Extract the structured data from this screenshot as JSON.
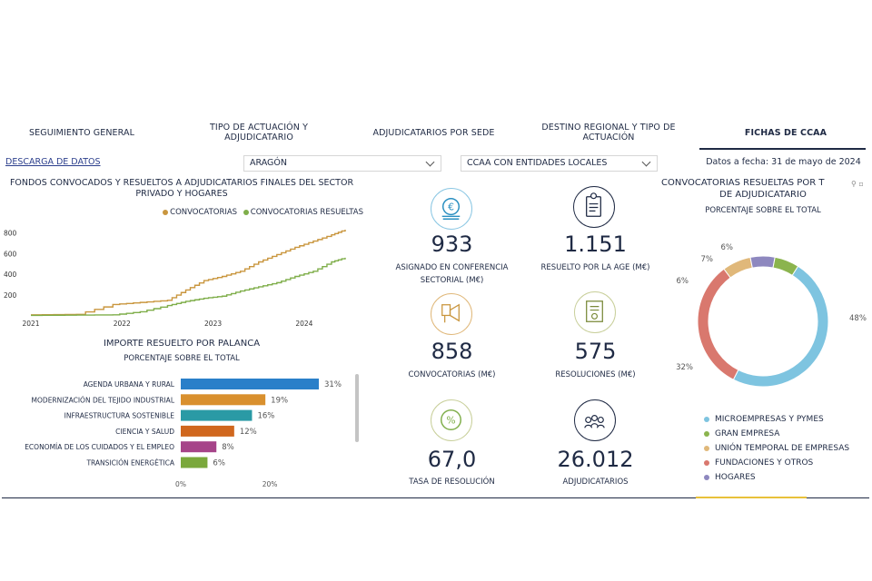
{
  "nav": {
    "tabs": [
      {
        "label": "SEGUIMIENTO GENERAL"
      },
      {
        "label": "TIPO DE ACTUACIÓN Y ADJUDICATARIO"
      },
      {
        "label": "ADJUDICATARIOS POR SEDE"
      },
      {
        "label": "DESTINO REGIONAL Y TIPO DE ACTUACIÓN"
      },
      {
        "label": "FICHAS DE CCAA"
      }
    ],
    "active": "FICHAS DE CCAA"
  },
  "toolbar": {
    "download_label": "DESCARGA DE DATOS",
    "region_select": "ARAGÓN",
    "entity_select": "CCAA CON ENTIDADES LOCALES",
    "date_text": "Datos a fecha: 31 de mayo de 2024"
  },
  "line_chart": {
    "title": "FONDOS CONVOCADOS Y RESUELTOS A ADJUDICATARIOS FINALES DEL SECTOR PRIVADO Y HOGARES",
    "legend": [
      {
        "label": "CONVOCATORIAS",
        "color": "#c9963e"
      },
      {
        "label": "CONVOCATORIAS RESUELTAS",
        "color": "#7fae4a"
      }
    ],
    "y_ticks": [
      "800",
      "600",
      "400",
      "200"
    ],
    "x_ticks": [
      "2021",
      "2022",
      "2023",
      "2024"
    ]
  },
  "bar_chart": {
    "title": "IMPORTE RESUELTO POR PALANCA",
    "subtitle": "PORCENTAJE SOBRE EL TOTAL",
    "x_ticks": [
      "0%",
      "20%"
    ]
  },
  "kpis": [
    {
      "value": "933",
      "label": "ASIGNADO EN CONFERENCIA SECTORIAL (M€)",
      "icon": "euro-coins-icon"
    },
    {
      "value": "1.151",
      "label": "RESUELTO POR LA AGE (M€)",
      "icon": "document-badge-icon"
    },
    {
      "value": "858",
      "label": "CONVOCATORIAS (M€)",
      "icon": "megaphone-icon"
    },
    {
      "value": "575",
      "label": "RESOLUCIONES (M€)",
      "icon": "certificate-icon"
    },
    {
      "value": "67,0",
      "label": "TASA DE RESOLUCIÓN",
      "icon": "percent-icon"
    },
    {
      "value": "26.012",
      "label": "ADJUDICATARIOS",
      "icon": "people-group-icon"
    }
  ],
  "donut": {
    "title": "CONVOCATORIAS RESUELTAS POR TIPO DE ADJUDICATARIO",
    "title_visible": "CONVOCATORIAS RESUELTAS POR T",
    "title_line2": "DE ADJUDICATARIO",
    "subtitle": "PORCENTAJE SOBRE EL TOTAL"
  },
  "chart_data": [
    {
      "type": "line",
      "title": "FONDOS CONVOCADOS Y RESUELTOS A ADJUDICATARIOS FINALES DEL SECTOR PRIVADO Y HOGARES",
      "ylim": [
        0,
        900
      ],
      "x": [
        2021.0,
        2021.5,
        2021.9,
        2022.2,
        2022.5,
        2022.7,
        2022.9,
        2023.1,
        2023.3,
        2023.5,
        2023.7,
        2023.9,
        2024.1,
        2024.3,
        2024.45
      ],
      "series": [
        {
          "name": "CONVOCATORIAS",
          "color": "#c9963e",
          "values": [
            10,
            15,
            110,
            130,
            150,
            250,
            340,
            380,
            430,
            520,
            590,
            660,
            720,
            780,
            830
          ]
        },
        {
          "name": "CONVOCATORIAS RESUELTAS",
          "color": "#7fae4a",
          "values": [
            5,
            8,
            10,
            40,
            100,
            140,
            170,
            190,
            240,
            280,
            320,
            380,
            430,
            520,
            560
          ]
        }
      ],
      "x_ticks": [
        "2021",
        "2022",
        "2023",
        "2024"
      ],
      "y_ticks": [
        200,
        400,
        600,
        800
      ]
    },
    {
      "type": "bar",
      "title": "IMPORTE RESUELTO POR PALANCA",
      "subtitle": "PORCENTAJE SOBRE EL TOTAL",
      "categories": [
        "AGENDA URBANA Y RURAL",
        "MODERNIZACIÓN DEL TEJIDO INDUSTRIAL",
        "INFRAESTRUCTURA SOSTENIBLE",
        "CIENCIA Y SALUD",
        "ECONOMÍA DE LOS CUIDADOS Y EL EMPLEO",
        "TRANSICIÓN ENERGÉTICA"
      ],
      "values": [
        31,
        19,
        16,
        12,
        8,
        6
      ],
      "colors": [
        "#2a7fc9",
        "#d9902e",
        "#2a9aa5",
        "#d0671e",
        "#a64489",
        "#7aa83c"
      ],
      "xlim": [
        0,
        33
      ]
    },
    {
      "type": "pie",
      "title": "CONVOCATORIAS RESUELTAS POR TIPO DE ADJUDICATARIO",
      "subtitle": "PORCENTAJE SOBRE EL TOTAL",
      "categories": [
        "MICROEMPRESAS Y PYMES",
        "GRAN EMPRESA",
        "UNIÓN TEMPORAL DE EMPRESAS",
        "FUNDACIONES Y OTROS",
        "HOGARES"
      ],
      "values": [
        48,
        6,
        7,
        32,
        6
      ],
      "labels": [
        "48%",
        "6%",
        "7%",
        "32%",
        "6%"
      ],
      "colors": [
        "#7ec4e0",
        "#8bb44e",
        "#e0b87a",
        "#d9786e",
        "#8e88bf"
      ],
      "legend": "bottom-left"
    }
  ]
}
